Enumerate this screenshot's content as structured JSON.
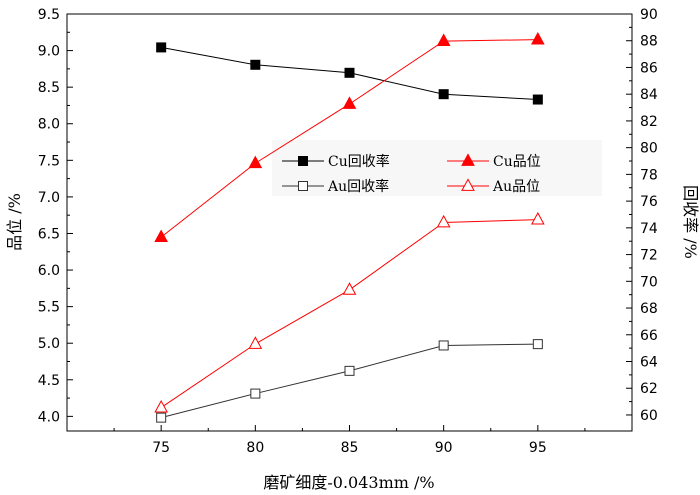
{
  "chart_data": {
    "type": "line",
    "xlabel": "磨矿细度-0.043mm /%",
    "ylabel_left": "品位 /%",
    "ylabel_right": "回收率 /%",
    "x": [
      75,
      80,
      85,
      90,
      95
    ],
    "xlim": [
      70,
      100
    ],
    "xticks": [
      "75",
      "80",
      "85",
      "90",
      "95"
    ],
    "ylim_left": [
      3.8,
      9.5
    ],
    "yticks_left": [
      "4.0",
      "4.5",
      "5.0",
      "5.5",
      "6.0",
      "6.5",
      "7.0",
      "7.5",
      "8.0",
      "8.5",
      "9.0",
      "9.5"
    ],
    "ylim_right": [
      58.8,
      90
    ],
    "yticks_right": [
      "60",
      "62",
      "64",
      "66",
      "68",
      "70",
      "72",
      "74",
      "76",
      "78",
      "80",
      "82",
      "84",
      "86",
      "88",
      "90"
    ],
    "grid": false,
    "legend_placement": "center",
    "series": [
      {
        "name": "Cu回收率",
        "axis": "right",
        "values": [
          87.5,
          86.2,
          85.6,
          84.0,
          83.6
        ],
        "color": "#000000",
        "marker": "square",
        "filled": true
      },
      {
        "name": "Au回收率",
        "axis": "right",
        "values": [
          59.8,
          61.6,
          63.3,
          65.2,
          65.3
        ],
        "color": "#333333",
        "marker": "square",
        "filled": false
      },
      {
        "name": "Cu品位",
        "axis": "left",
        "values": [
          6.45,
          7.46,
          8.27,
          9.13,
          9.15
        ],
        "color": "#ff0000",
        "marker": "triangle",
        "filled": true
      },
      {
        "name": "Au品位",
        "axis": "left",
        "values": [
          4.12,
          4.99,
          5.73,
          6.65,
          6.69
        ],
        "color": "#ff0000",
        "marker": "triangle",
        "filled": false
      }
    ]
  }
}
